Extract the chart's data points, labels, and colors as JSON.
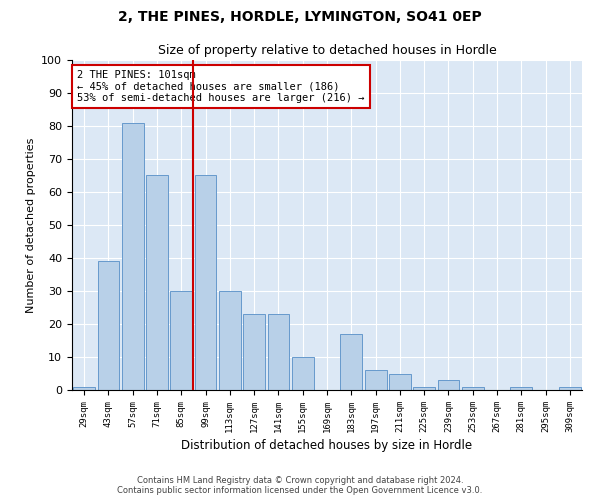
{
  "title": "2, THE PINES, HORDLE, LYMINGTON, SO41 0EP",
  "subtitle": "Size of property relative to detached houses in Hordle",
  "xlabel": "Distribution of detached houses by size in Hordle",
  "ylabel": "Number of detached properties",
  "categories": [
    "29sqm",
    "43sqm",
    "57sqm",
    "71sqm",
    "85sqm",
    "99sqm",
    "113sqm",
    "127sqm",
    "141sqm",
    "155sqm",
    "169sqm",
    "183sqm",
    "197sqm",
    "211sqm",
    "225sqm",
    "239sqm",
    "253sqm",
    "267sqm",
    "281sqm",
    "295sqm",
    "309sqm"
  ],
  "values": [
    1,
    39,
    81,
    65,
    30,
    65,
    30,
    23,
    23,
    10,
    0,
    17,
    6,
    5,
    1,
    3,
    1,
    0,
    1,
    0,
    1
  ],
  "bar_color": "#b8d0e8",
  "bar_edge_color": "#6699cc",
  "highlight_index": 5,
  "highlight_color": "#cc0000",
  "annotation_text": "2 THE PINES: 101sqm\n← 45% of detached houses are smaller (186)\n53% of semi-detached houses are larger (216) →",
  "annotation_box_color": "#ffffff",
  "annotation_box_edge": "#cc0000",
  "ylim": [
    0,
    100
  ],
  "yticks": [
    0,
    10,
    20,
    30,
    40,
    50,
    60,
    70,
    80,
    90,
    100
  ],
  "bg_color": "#dce8f5",
  "footer_line1": "Contains HM Land Registry data © Crown copyright and database right 2024.",
  "footer_line2": "Contains public sector information licensed under the Open Government Licence v3.0."
}
